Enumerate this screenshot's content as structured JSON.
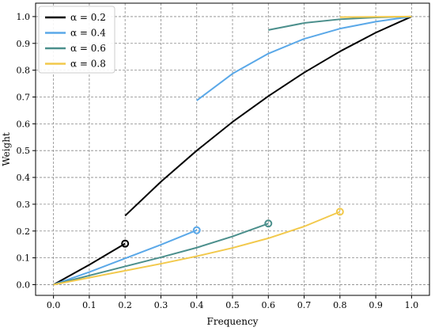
{
  "chart_data": {
    "type": "line",
    "xlabel": "Frequency",
    "ylabel": "Weight",
    "xlim": [
      -0.05,
      1.05
    ],
    "ylim": [
      -0.04,
      1.05
    ],
    "xticks": [
      "0.0",
      "0.1",
      "0.2",
      "0.3",
      "0.4",
      "0.5",
      "0.6",
      "0.7",
      "0.8",
      "0.9",
      "1.0"
    ],
    "yticks": [
      "0.0",
      "0.1",
      "0.2",
      "0.3",
      "0.4",
      "0.5",
      "0.6",
      "0.7",
      "0.8",
      "0.9",
      "1.0"
    ],
    "grid": true,
    "legend_position": "top-left",
    "series": [
      {
        "name": "α = 0.2",
        "color": "#000000",
        "lower": {
          "x": [
            0.0,
            0.1,
            0.2
          ],
          "y": [
            0.0,
            0.074,
            0.153
          ]
        },
        "upper": {
          "x": [
            0.2,
            0.3,
            0.4,
            0.5,
            0.6,
            0.7,
            0.8,
            0.9,
            1.0
          ],
          "y": [
            0.257,
            0.384,
            0.5,
            0.607,
            0.703,
            0.791,
            0.87,
            0.94,
            1.0
          ]
        },
        "marker": {
          "x": 0.2,
          "y": 0.153
        }
      },
      {
        "name": "α = 0.4",
        "color": "#5aa8e8",
        "lower": {
          "x": [
            0.0,
            0.1,
            0.2,
            0.3,
            0.4
          ],
          "y": [
            0.0,
            0.047,
            0.098,
            0.149,
            0.203
          ]
        },
        "upper": {
          "x": [
            0.4,
            0.5,
            0.6,
            0.7,
            0.8,
            0.9,
            1.0
          ],
          "y": [
            0.687,
            0.787,
            0.862,
            0.917,
            0.955,
            0.981,
            1.0
          ]
        },
        "marker": {
          "x": 0.4,
          "y": 0.203
        }
      },
      {
        "name": "α = 0.6",
        "color": "#4b8f8c",
        "lower": {
          "x": [
            0.0,
            0.1,
            0.2,
            0.3,
            0.4,
            0.5,
            0.6
          ],
          "y": [
            0.0,
            0.034,
            0.068,
            0.102,
            0.138,
            0.18,
            0.228
          ]
        },
        "upper": {
          "x": [
            0.6,
            0.7,
            0.8,
            0.9,
            1.0
          ],
          "y": [
            0.95,
            0.976,
            0.99,
            0.997,
            1.0
          ]
        },
        "marker": {
          "x": 0.6,
          "y": 0.228
        }
      },
      {
        "name": "α = 0.8",
        "color": "#f2c94c",
        "lower": {
          "x": [
            0.0,
            0.1,
            0.2,
            0.3,
            0.4,
            0.5,
            0.6,
            0.7,
            0.8
          ],
          "y": [
            0.0,
            0.026,
            0.052,
            0.078,
            0.106,
            0.137,
            0.173,
            0.217,
            0.272
          ]
        },
        "upper": {
          "x": [
            0.8,
            0.9,
            1.0
          ],
          "y": [
            0.998,
            0.999,
            1.0
          ]
        },
        "marker": {
          "x": 0.8,
          "y": 0.272
        }
      }
    ]
  }
}
